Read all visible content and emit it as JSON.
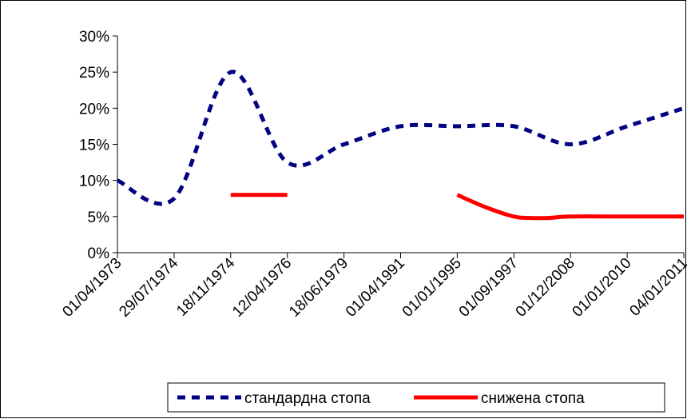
{
  "chart_data": {
    "type": "line",
    "categories": [
      "01/04/1973",
      "29/07/1974",
      "18/11/1974",
      "12/04/1976",
      "18/06/1979",
      "01/04/1991",
      "01/01/1995",
      "01/09/1997",
      "01/12/2008",
      "01/01/2010",
      "04/01/2011"
    ],
    "y_ticks": [
      "0%",
      "5%",
      "10%",
      "15%",
      "20%",
      "25%",
      "30%"
    ],
    "ylim": [
      0,
      30
    ],
    "grid": false,
    "legend_position": "bottom",
    "series": [
      {
        "name": "стандардна стопа",
        "color": "#000080",
        "dash": true,
        "points": [
          {
            "x": 0,
            "y": 10
          },
          {
            "x": 1,
            "y": 7.5
          },
          {
            "x": 2,
            "y": 25
          },
          {
            "x": 3,
            "y": 12.5
          },
          {
            "x": 4,
            "y": 15
          },
          {
            "x": 5,
            "y": 17.5
          },
          {
            "x": 6,
            "y": 17.5
          },
          {
            "x": 7,
            "y": 17.5
          },
          {
            "x": 8,
            "y": 15
          },
          {
            "x": 9,
            "y": 17.5
          },
          {
            "x": 10,
            "y": 20
          }
        ]
      },
      {
        "name": "снижена стопа",
        "color": "#ff0000",
        "dash": false,
        "points": [
          {
            "x": 2,
            "y": 8
          },
          {
            "x": 3,
            "y": 8
          },
          {
            "x": 6,
            "y": 8
          },
          {
            "x": 6.5,
            "y": 6.3
          },
          {
            "x": 7,
            "y": 5
          },
          {
            "x": 7.3,
            "y": 4.8
          },
          {
            "x": 7.6,
            "y": 4.8
          },
          {
            "x": 8,
            "y": 5
          },
          {
            "x": 9,
            "y": 5
          },
          {
            "x": 10,
            "y": 5
          }
        ]
      }
    ]
  }
}
